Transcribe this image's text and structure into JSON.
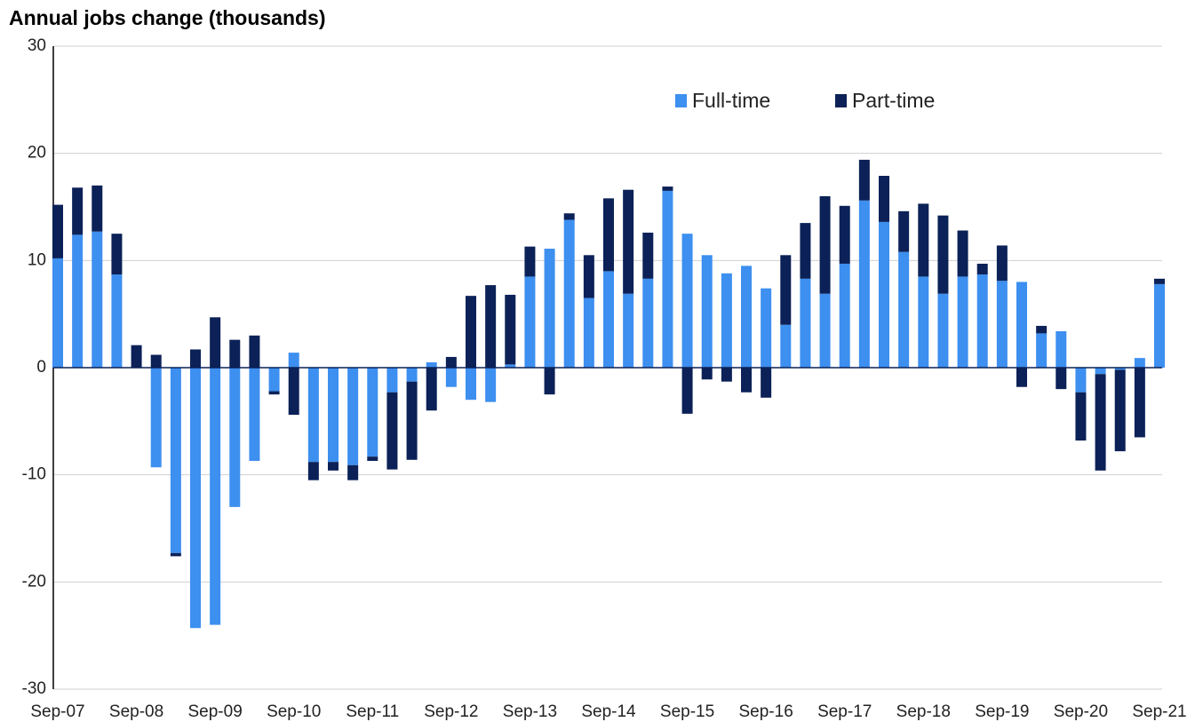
{
  "chart_data": {
    "type": "stacked_bar",
    "title": "Annual jobs change (thousands)",
    "categories": [
      "Sep-07",
      null,
      null,
      null,
      "Sep-08",
      null,
      null,
      null,
      "Sep-09",
      null,
      null,
      null,
      "Sep-10",
      null,
      null,
      null,
      "Sep-11",
      null,
      null,
      null,
      "Sep-12",
      null,
      null,
      null,
      "Sep-13",
      null,
      null,
      null,
      "Sep-14",
      null,
      null,
      null,
      "Sep-15",
      null,
      null,
      null,
      "Sep-16",
      null,
      null,
      null,
      "Sep-17",
      null,
      null,
      null,
      "Sep-18",
      null,
      null,
      null,
      "Sep-19",
      null,
      null,
      null,
      "Sep-20",
      null,
      null,
      null,
      "Sep-21"
    ],
    "series": [
      {
        "name": "Full-time",
        "color": "#3d8ff0",
        "values": [
          10.2,
          12.4,
          12.7,
          8.7,
          0,
          -9.3,
          -17.3,
          -24.3,
          -24.0,
          -13.0,
          -8.7,
          -2.2,
          1.4,
          -8.8,
          -8.8,
          -9.1,
          -8.3,
          -2.3,
          -1.3,
          0.5,
          -1.8,
          -3.0,
          -3.2,
          0.3,
          8.5,
          11.1,
          13.8,
          6.5,
          9.0,
          6.9,
          8.3,
          16.5,
          12.5,
          10.5,
          8.8,
          9.5,
          7.4,
          4.0,
          8.3,
          6.9,
          9.7,
          15.6,
          13.6,
          10.8,
          8.5,
          6.9,
          8.5,
          8.7,
          8.1,
          8.0,
          3.2,
          3.4,
          -2.3,
          -0.6,
          -0.2,
          0.9,
          7.8
        ]
      },
      {
        "name": "Part-time",
        "color": "#0b2157",
        "values": [
          5.0,
          4.4,
          4.3,
          3.8,
          2.1,
          1.2,
          -0.3,
          1.7,
          4.7,
          2.6,
          3.0,
          -0.3,
          -4.4,
          -1.7,
          -0.8,
          -1.4,
          -0.4,
          -7.2,
          -7.3,
          -4.0,
          1.0,
          6.7,
          7.7,
          6.5,
          2.8,
          -2.5,
          0.6,
          4.0,
          6.8,
          9.7,
          4.3,
          0.4,
          -4.3,
          -1.1,
          -1.3,
          -2.3,
          -2.8,
          6.5,
          5.2,
          9.1,
          5.4,
          3.8,
          4.3,
          3.8,
          6.8,
          7.3,
          4.3,
          1.0,
          3.3,
          -1.8,
          0.7,
          -2.0,
          -4.5,
          -9.0,
          -7.6,
          -6.5,
          0.5
        ]
      }
    ],
    "ylim": [
      -30,
      30
    ],
    "yticks": [
      -30,
      -20,
      -10,
      0,
      10,
      20,
      30
    ],
    "grid": true,
    "legend": "top-right"
  }
}
